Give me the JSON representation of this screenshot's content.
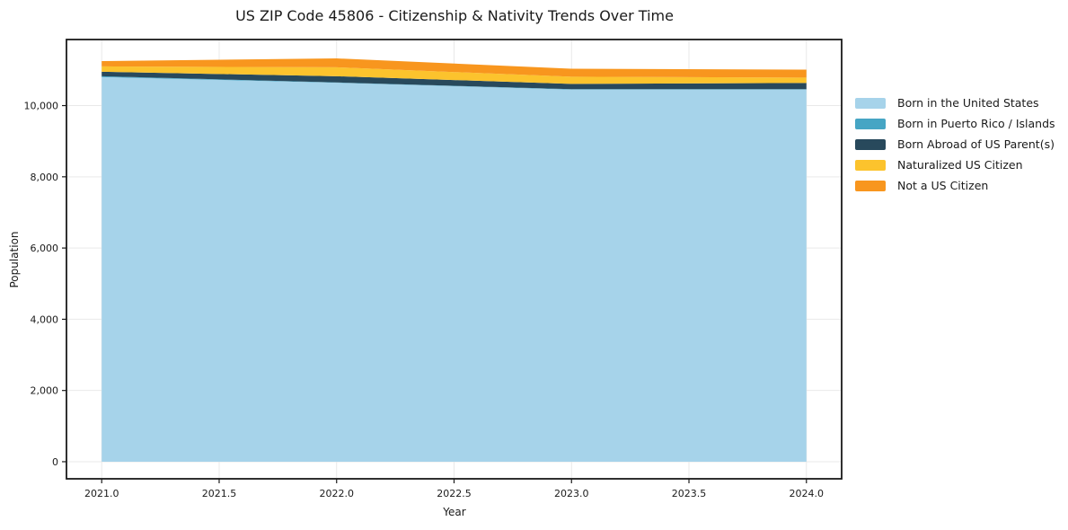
{
  "chart_data": {
    "type": "area",
    "stacked": true,
    "title": "US ZIP Code 45806 - Citizenship & Nativity Trends Over Time",
    "xlabel": "Year",
    "ylabel": "Population",
    "x": [
      2021,
      2022,
      2023,
      2024
    ],
    "series": [
      {
        "name": "Born in the United States",
        "color": "#a6d3ea",
        "values": [
          10800,
          10640,
          10450,
          10450
        ]
      },
      {
        "name": "Born in Puerto Rico / Islands",
        "color": "#46a5c4",
        "values": [
          25,
          10,
          10,
          10
        ]
      },
      {
        "name": "Born Abroad of US Parent(s)",
        "color": "#28495c",
        "values": [
          125,
          175,
          150,
          175
        ]
      },
      {
        "name": "Naturalized US Citizen",
        "color": "#fcc32d",
        "values": [
          150,
          250,
          200,
          150
        ]
      },
      {
        "name": "Not a US Citizen",
        "color": "#f8961e",
        "values": [
          150,
          250,
          225,
          225
        ]
      }
    ],
    "x_ticks": [
      {
        "value": 2021.0,
        "label": "2021.0"
      },
      {
        "value": 2021.5,
        "label": "2021.5"
      },
      {
        "value": 2022.0,
        "label": "2022.0"
      },
      {
        "value": 2022.5,
        "label": "2022.5"
      },
      {
        "value": 2023.0,
        "label": "2023.0"
      },
      {
        "value": 2023.5,
        "label": "2023.5"
      },
      {
        "value": 2024.0,
        "label": "2024.0"
      }
    ],
    "y_ticks": [
      {
        "value": 0,
        "label": "0"
      },
      {
        "value": 2000,
        "label": "2,000"
      },
      {
        "value": 4000,
        "label": "4,000"
      },
      {
        "value": 6000,
        "label": "6,000"
      },
      {
        "value": 8000,
        "label": "8,000"
      },
      {
        "value": 10000,
        "label": "10,000"
      }
    ],
    "xlim": [
      2020.85,
      2024.15
    ],
    "ylim": [
      -480,
      11855
    ],
    "grid": true,
    "grid_color": "#e9e9e9",
    "axis_color": "#1a1a1a",
    "background_color": "#ffffff",
    "legend_position": "right"
  }
}
